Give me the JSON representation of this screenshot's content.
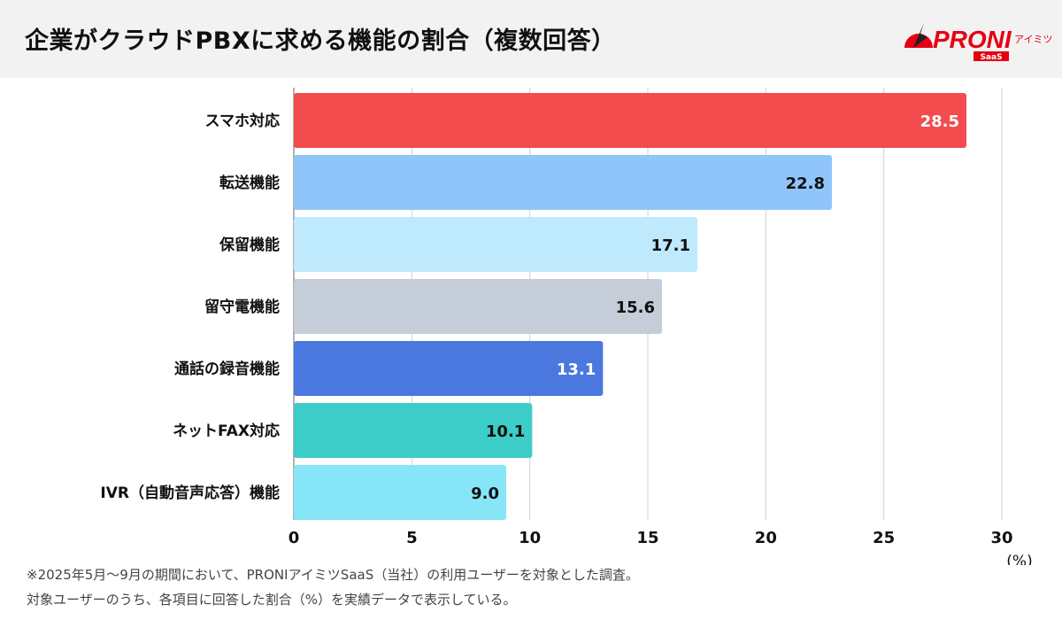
{
  "header": {
    "title": "企業がクラウドPBXに求める機能の割合（複数回答）",
    "logo_text": "PRONI",
    "logo_sub": "アイミツ",
    "logo_badge": "SaaS"
  },
  "chart_data": {
    "type": "bar",
    "orientation": "horizontal",
    "categories": [
      "スマホ対応",
      "転送機能",
      "保留機能",
      "留守電機能",
      "通話の録音機能",
      "ネットFAX対応",
      "IVR（自動音声応答）機能"
    ],
    "values": [
      28.5,
      22.8,
      17.1,
      15.6,
      13.1,
      10.1,
      9.0
    ],
    "value_labels": [
      "28.5",
      "22.8",
      "17.1",
      "15.6",
      "13.1",
      "10.1",
      "9.0"
    ],
    "colors": [
      "#f24c4e",
      "#90c5fb",
      "#bfe9fd",
      "#c5cdd8",
      "#4a78de",
      "#3ccdc8",
      "#86e6f8"
    ],
    "label_colors": [
      "#ffffff",
      "#111111",
      "#111111",
      "#111111",
      "#ffffff",
      "#111111",
      "#111111"
    ],
    "xlim": [
      0,
      30
    ],
    "xticks": [
      "0",
      "5",
      "10",
      "15",
      "20",
      "25",
      "30"
    ],
    "xunit": "(%)",
    "grid": true
  },
  "footer": {
    "note1": "※2025年5月〜9月の期間において、PRONIアイミツSaaS（当社）の利用ユーザーを対象とした調査。",
    "note2": "対象ユーザーのうち、各項目に回答した割合（%）を実績データで表示している。"
  }
}
